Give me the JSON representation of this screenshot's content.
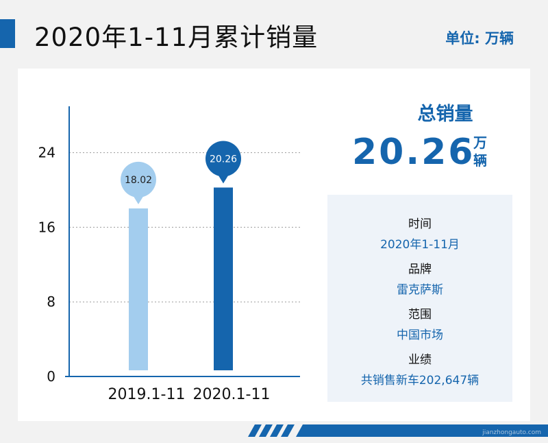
{
  "header": {
    "title": "2020年1-11月累计销量",
    "unit": "单位: 万辆"
  },
  "summary": {
    "title": "总销量",
    "value": "20.26",
    "unit": "万辆"
  },
  "info": [
    {
      "label": "时间",
      "value": "2020年1-11月"
    },
    {
      "label": "品牌",
      "value": "雷克萨斯"
    },
    {
      "label": "范围",
      "value": "中国市场"
    },
    {
      "label": "业绩",
      "value": "共销售新车202,647辆"
    }
  ],
  "watermark": "jianzhongauto.com",
  "colors": {
    "accent": "#1565ad",
    "bar_light": "#a3cdee",
    "bar_dark": "#1565ad"
  },
  "chart_data": {
    "type": "bar",
    "categories": [
      "2019.1-11",
      "2020.1-11"
    ],
    "values": [
      18.02,
      20.26
    ],
    "data_labels": [
      "18.02",
      "20.26"
    ],
    "title": "2020年1-11月累计销量",
    "xlabel": "",
    "ylabel": "单位: 万辆",
    "yticks": [
      0,
      8,
      16,
      24
    ],
    "ylim": [
      0,
      29
    ],
    "grid": true
  }
}
